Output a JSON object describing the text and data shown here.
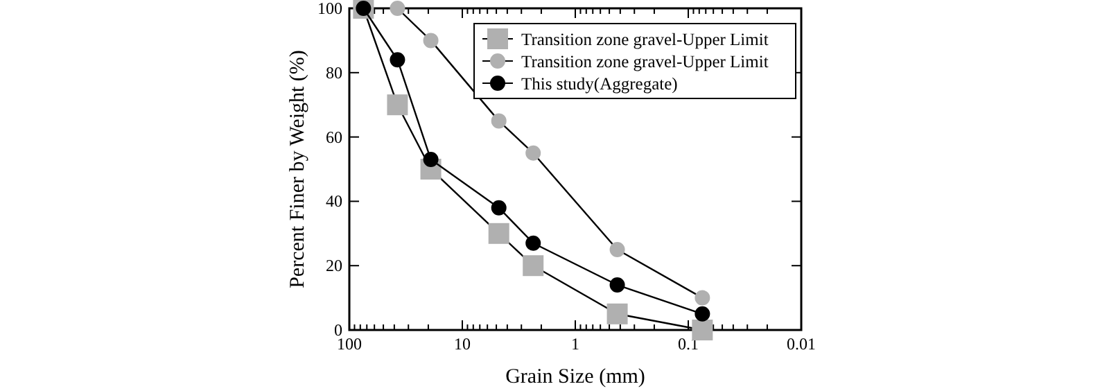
{
  "chart_data": {
    "type": "line",
    "xlabel": "Grain Size (mm)",
    "ylabel": "Percent Finer by Weight (%)",
    "log": "x",
    "xlim": [
      100,
      0.01
    ],
    "ylim": [
      0,
      100
    ],
    "xticks": [
      100,
      {
        "value": 90,
        "label": null
      },
      {
        "value": 80,
        "label": null
      },
      {
        "value": 70,
        "label": null
      },
      {
        "value": 60,
        "label": null
      },
      {
        "value": 50,
        "label": null
      },
      {
        "value": 40,
        "label": null
      },
      {
        "value": 30,
        "label": null
      },
      {
        "value": 20,
        "label": null
      },
      10,
      {
        "value": 9,
        "label": null
      },
      {
        "value": 8,
        "label": null
      },
      {
        "value": 7,
        "label": null
      },
      {
        "value": 6,
        "label": null
      },
      {
        "value": 5,
        "label": null
      },
      {
        "value": 4,
        "label": null
      },
      {
        "value": 3,
        "label": null
      },
      {
        "value": 2,
        "label": null
      },
      1,
      {
        "value": 0.9,
        "label": null
      },
      {
        "value": 0.8,
        "label": null
      },
      {
        "value": 0.7,
        "label": null
      },
      {
        "value": 0.6,
        "label": null
      },
      {
        "value": 0.5,
        "label": null
      },
      {
        "value": 0.4,
        "label": null
      },
      {
        "value": 0.3,
        "label": null
      },
      {
        "value": 0.2,
        "label": null
      },
      0.1,
      {
        "value": 0.09,
        "label": null
      },
      {
        "value": 0.08,
        "label": null
      },
      {
        "value": 0.07,
        "label": null
      },
      {
        "value": 0.06,
        "label": null
      },
      {
        "value": 0.05,
        "label": null
      },
      {
        "value": 0.04,
        "label": null
      },
      {
        "value": 0.03,
        "label": null
      },
      {
        "value": 0.02,
        "label": null
      },
      0.01
    ],
    "yticks": [
      0,
      20,
      40,
      60,
      80,
      100
    ],
    "legend": "top right",
    "grid": false,
    "line_style": "solid",
    "series": [
      {
        "name": "Transition zone gravel-Upper Limit",
        "color": "#b0b0b0",
        "marker": "square",
        "x": [
          75,
          37.5,
          19,
          4.75,
          2.36,
          0.425,
          0.075
        ],
        "values": [
          100,
          70,
          50,
          30,
          20,
          5,
          0
        ]
      },
      {
        "name": "Transition zone gravel-Upper Limit",
        "color": "#b0b0b0",
        "marker": "circle",
        "x": [
          37.5,
          19,
          4.75,
          2.36,
          0.425,
          0.075
        ],
        "values": [
          100,
          90,
          65,
          55,
          25,
          10
        ]
      },
      {
        "name": "This study(Aggregate)",
        "color": "#000000",
        "marker": "circle",
        "x": [
          75,
          37.5,
          19,
          4.75,
          2.36,
          0.425,
          0.075
        ],
        "values": [
          100,
          84,
          53,
          38,
          27,
          14,
          5
        ]
      }
    ]
  }
}
